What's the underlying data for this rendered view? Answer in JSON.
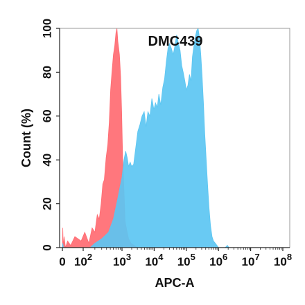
{
  "chart_data": {
    "type": "area",
    "title": "DMC439",
    "xlabel": "APC-A",
    "ylabel": "Count (%)",
    "x_scale": "biexponential",
    "xlim": [
      0,
      100000000
    ],
    "ylim": [
      0,
      100
    ],
    "x_ticks": [
      {
        "value": 0,
        "base": "0",
        "exp": ""
      },
      {
        "value": 100,
        "base": "10",
        "exp": "2"
      },
      {
        "value": 1000,
        "base": "10",
        "exp": "3"
      },
      {
        "value": 10000,
        "base": "10",
        "exp": "4"
      },
      {
        "value": 100000,
        "base": "10",
        "exp": "5"
      },
      {
        "value": 1000000,
        "base": "10",
        "exp": "6"
      },
      {
        "value": 10000000,
        "base": "10",
        "exp": "7"
      },
      {
        "value": 100000000,
        "base": "10",
        "exp": "8"
      }
    ],
    "y_ticks": [
      0,
      20,
      40,
      60,
      80,
      100
    ],
    "grid": false,
    "legend": "none",
    "series": [
      {
        "color": "#ff6b72",
        "opacity": 0.92,
        "points": [
          [
            0,
            0
          ],
          [
            2,
            9
          ],
          [
            4,
            0
          ],
          [
            8,
            5
          ],
          [
            15,
            0
          ],
          [
            25,
            3
          ],
          [
            40,
            1
          ],
          [
            60,
            5
          ],
          [
            90,
            3
          ],
          [
            110,
            7
          ],
          [
            140,
            2
          ],
          [
            170,
            9
          ],
          [
            200,
            7
          ],
          [
            230,
            15
          ],
          [
            260,
            13
          ],
          [
            290,
            20
          ],
          [
            320,
            29
          ],
          [
            350,
            31
          ],
          [
            390,
            41
          ],
          [
            430,
            47
          ],
          [
            470,
            57
          ],
          [
            510,
            72
          ],
          [
            550,
            80
          ],
          [
            600,
            88
          ],
          [
            650,
            92
          ],
          [
            700,
            98
          ],
          [
            740,
            100
          ],
          [
            780,
            94
          ],
          [
            820,
            91
          ],
          [
            860,
            88
          ],
          [
            920,
            78
          ],
          [
            980,
            62
          ],
          [
            1050,
            40
          ],
          [
            1150,
            27
          ],
          [
            1250,
            12
          ],
          [
            1400,
            8
          ],
          [
            1600,
            4
          ],
          [
            1900,
            2
          ],
          [
            2400,
            1
          ],
          [
            3000,
            0
          ]
        ]
      },
      {
        "color": "#5cc6f2",
        "opacity": 0.92,
        "points": [
          [
            0,
            0
          ],
          [
            2,
            2
          ],
          [
            5,
            0
          ],
          [
            150,
            0
          ],
          [
            200,
            2
          ],
          [
            300,
            4
          ],
          [
            450,
            7
          ],
          [
            600,
            13
          ],
          [
            750,
            21
          ],
          [
            900,
            28
          ],
          [
            1000,
            32
          ],
          [
            1150,
            40
          ],
          [
            1300,
            44
          ],
          [
            1450,
            41
          ],
          [
            1600,
            37
          ],
          [
            1800,
            39
          ],
          [
            2000,
            37
          ],
          [
            2300,
            38
          ],
          [
            2700,
            46
          ],
          [
            3100,
            53
          ],
          [
            3600,
            56
          ],
          [
            4200,
            60
          ],
          [
            4900,
            62
          ],
          [
            5600,
            55
          ],
          [
            6400,
            62
          ],
          [
            7400,
            60
          ],
          [
            8500,
            68
          ],
          [
            9800,
            63
          ],
          [
            11000,
            66
          ],
          [
            12500,
            64
          ],
          [
            14000,
            70
          ],
          [
            16000,
            65
          ],
          [
            18500,
            73
          ],
          [
            21000,
            77
          ],
          [
            24000,
            85
          ],
          [
            27000,
            91
          ],
          [
            30000,
            93
          ],
          [
            34000,
            91
          ],
          [
            39000,
            88
          ],
          [
            44000,
            92
          ],
          [
            50000,
            97
          ],
          [
            57000,
            93
          ],
          [
            64000,
            90
          ],
          [
            72000,
            83
          ],
          [
            80000,
            80
          ],
          [
            90000,
            76
          ],
          [
            100000,
            72
          ],
          [
            112000,
            74
          ],
          [
            125000,
            79
          ],
          [
            140000,
            76
          ],
          [
            155000,
            87
          ],
          [
            172000,
            92
          ],
          [
            190000,
            96
          ],
          [
            210000,
            99
          ],
          [
            232000,
            100
          ],
          [
            256000,
            96
          ],
          [
            282000,
            88
          ],
          [
            310000,
            78
          ],
          [
            340000,
            66
          ],
          [
            375000,
            52
          ],
          [
            415000,
            40
          ],
          [
            460000,
            28
          ],
          [
            510000,
            18
          ],
          [
            565000,
            10
          ],
          [
            630000,
            5
          ],
          [
            700000,
            3
          ],
          [
            800000,
            2
          ],
          [
            1000000,
            0
          ],
          [
            1600000,
            0
          ],
          [
            1900000,
            1
          ],
          [
            2100000,
            0
          ],
          [
            100000000,
            0
          ]
        ]
      }
    ]
  }
}
